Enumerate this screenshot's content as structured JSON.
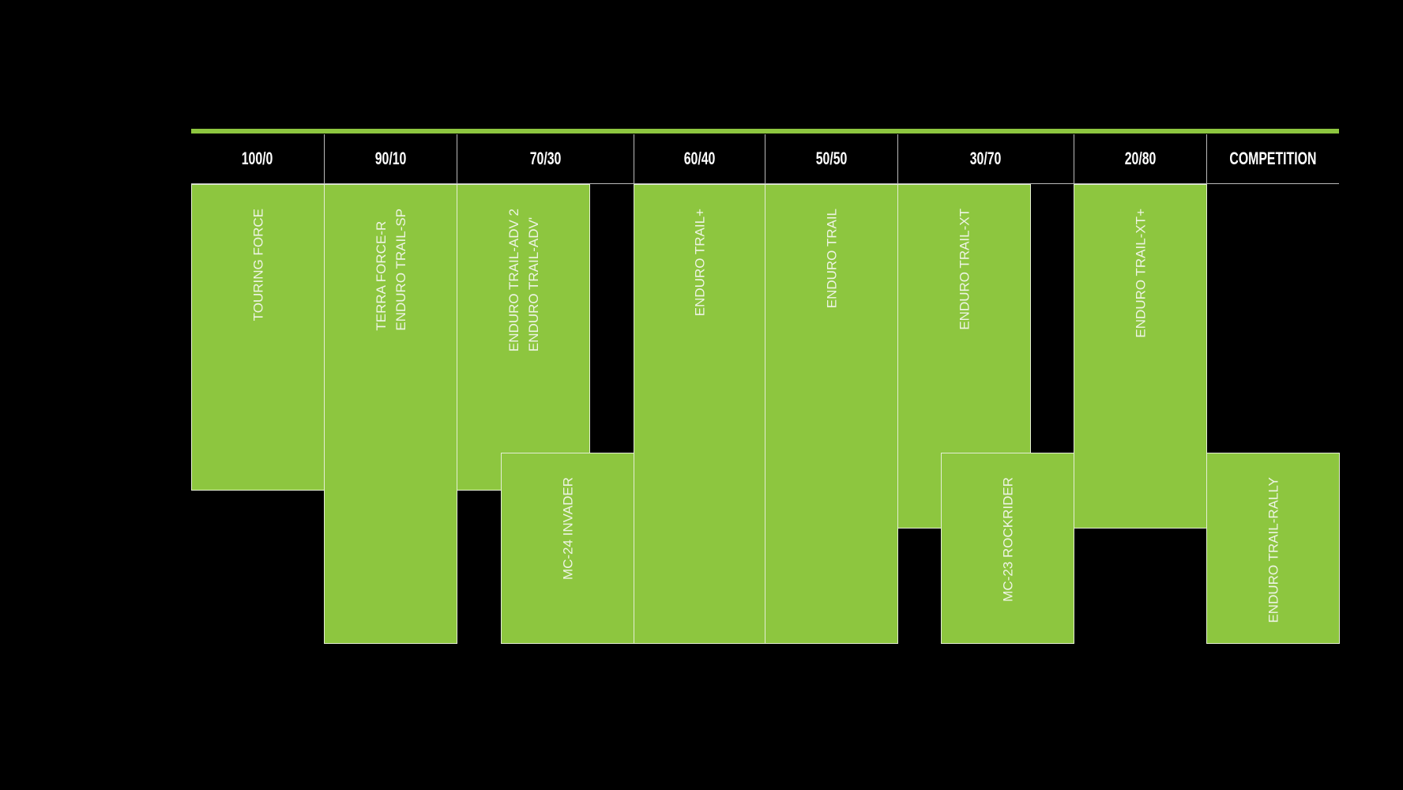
{
  "colors": {
    "background": "#000000",
    "accent": "#8dc63f",
    "text": "#ffffff"
  },
  "headers": [
    "100/0",
    "90/10",
    "70/30",
    "60/40",
    "50/50",
    "30/70",
    "20/80",
    "COMPETITION"
  ],
  "products": [
    {
      "label": "TOURING FORCE"
    },
    {
      "label": "TERRA FORCE-R\nENDURO TRAIL-SP"
    },
    {
      "label": "ENDURO TRAIL-ADV 2\nENDURO TRAIL-ADV'"
    },
    {
      "label": "MC-24 INVADER"
    },
    {
      "label": "ENDURO TRAIL+"
    },
    {
      "label": "ENDURO TRAIL"
    },
    {
      "label": "ENDURO TRAIL-XT"
    },
    {
      "label": "MC-23 ROCKRIDER"
    },
    {
      "label": "ENDURO TRAIL-XT+"
    },
    {
      "label": "ENDURO TRAIL-RALLY"
    }
  ]
}
